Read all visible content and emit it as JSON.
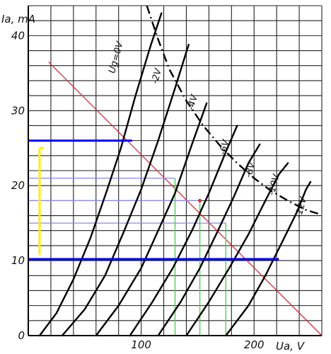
{
  "chart_data": {
    "type": "line",
    "title": "",
    "xlabel": "Ua, V",
    "ylabel": "Ia, mA",
    "xlim": [
      0,
      260
    ],
    "ylim": [
      0,
      44
    ],
    "x_ticks": [
      {
        "value": 100,
        "label": "100"
      },
      {
        "value": 200,
        "label": "200"
      }
    ],
    "y_ticks": [
      {
        "value": 0,
        "label": "0"
      },
      {
        "value": 10,
        "label": "10"
      },
      {
        "value": 20,
        "label": "20"
      },
      {
        "value": 30,
        "label": "30"
      },
      {
        "value": 40,
        "label": "40"
      }
    ],
    "grid": true,
    "grid_x_step": 20,
    "grid_y_step": 2,
    "legend": "none",
    "series": [
      {
        "name": "Ug=0V",
        "label_at": [
          80,
          37
        ],
        "label_angle": -75,
        "points": [
          [
            10,
            0
          ],
          [
            25,
            3
          ],
          [
            40,
            7.5
          ],
          [
            55,
            13
          ],
          [
            70,
            19.5
          ],
          [
            82,
            25
          ],
          [
            95,
            32
          ],
          [
            108,
            38.5
          ],
          [
            118,
            43
          ]
        ]
      },
      {
        "name": "-2V",
        "label_at": [
          116,
          34.5
        ],
        "label_angle": -75,
        "points": [
          [
            30,
            0
          ],
          [
            50,
            3.5
          ],
          [
            68,
            8
          ],
          [
            85,
            14
          ],
          [
            100,
            19.5
          ],
          [
            115,
            26
          ],
          [
            130,
            33
          ],
          [
            142,
            38.8
          ]
        ]
      },
      {
        "name": "-4V",
        "label_at": [
          148,
          31
        ],
        "label_angle": -75,
        "points": [
          [
            60,
            0
          ],
          [
            80,
            4
          ],
          [
            100,
            9
          ],
          [
            115,
            14
          ],
          [
            130,
            19
          ],
          [
            145,
            25.5
          ],
          [
            158,
            31
          ]
        ]
      },
      {
        "name": "-6V",
        "label_at": [
          176,
          25
        ],
        "label_angle": -75,
        "points": [
          [
            90,
            0
          ],
          [
            110,
            4.5
          ],
          [
            128,
            9
          ],
          [
            145,
            14
          ],
          [
            160,
            19
          ],
          [
            175,
            24.5
          ],
          [
            185,
            28
          ]
        ]
      },
      {
        "name": "-8V",
        "label_at": [
          199,
          22
        ],
        "label_angle": -75,
        "points": [
          [
            115,
            0
          ],
          [
            135,
            4.5
          ],
          [
            152,
            9
          ],
          [
            168,
            14
          ],
          [
            182,
            18.5
          ],
          [
            195,
            23
          ],
          [
            205,
            25.5
          ]
        ]
      },
      {
        "name": "-10V",
        "label_at": [
          220,
          20
        ],
        "label_angle": -75,
        "points": [
          [
            140,
            0
          ],
          [
            160,
            4.5
          ],
          [
            178,
            9
          ],
          [
            195,
            13.5
          ],
          [
            210,
            18
          ],
          [
            222,
            21.5
          ],
          [
            230,
            23
          ]
        ]
      },
      {
        "name": "-12V",
        "label_at": [
          244,
          17
        ],
        "label_angle": -75,
        "points": [
          [
            175,
            0
          ],
          [
            195,
            4
          ],
          [
            210,
            8
          ],
          [
            225,
            12.5
          ],
          [
            238,
            16.5
          ],
          [
            246,
            19.5
          ],
          [
            250,
            20.5
          ]
        ]
      }
    ],
    "overlays": {
      "max_dissipation_curve": {
        "style": "dash-dot",
        "color": "#000000",
        "points": [
          [
            105,
            44
          ],
          [
            115,
            39.5
          ],
          [
            125,
            35.5
          ],
          [
            140,
            31.3
          ],
          [
            155,
            28
          ],
          [
            170,
            25.3
          ],
          [
            185,
            23
          ],
          [
            200,
            21
          ],
          [
            215,
            19.3
          ],
          [
            230,
            18
          ],
          [
            245,
            16.8
          ],
          [
            258,
            16.2
          ]
        ]
      },
      "load_line": {
        "color": "#cc3333",
        "points": [
          [
            18,
            36.5
          ],
          [
            260,
            0
          ]
        ]
      },
      "operating_point": {
        "x": 152,
        "y": 18
      },
      "blue_thick_lines": {
        "color": "#0000ff",
        "segments": [
          [
            [
              0,
              26
            ],
            [
              92,
              26
            ]
          ],
          [
            [
              0,
              10.2
            ],
            [
              222,
              10.2
            ]
          ]
        ]
      },
      "blue_thin_lines": {
        "color": "#8888ee",
        "segments": [
          [
            [
              0,
              21
            ],
            [
              130,
              21
            ]
          ],
          [
            [
              0,
              18
            ],
            [
              152,
              18
            ]
          ],
          [
            [
              0,
              15
            ],
            [
              175,
              15
            ]
          ]
        ]
      },
      "green_verticals": {
        "color": "#55cc55",
        "segments": [
          [
            [
              130,
              0
            ],
            [
              130,
              21
            ]
          ],
          [
            [
              152,
              0
            ],
            [
              152,
              18
            ]
          ],
          [
            [
              175,
              0
            ],
            [
              175,
              15
            ]
          ]
        ]
      },
      "yellow_span": {
        "color": "#ffee00",
        "segments": [
          [
            [
              10,
              25
            ],
            [
              10,
              10.8
            ]
          ],
          [
            [
              10,
              25
            ],
            [
              14,
              25
            ]
          ]
        ]
      }
    }
  }
}
